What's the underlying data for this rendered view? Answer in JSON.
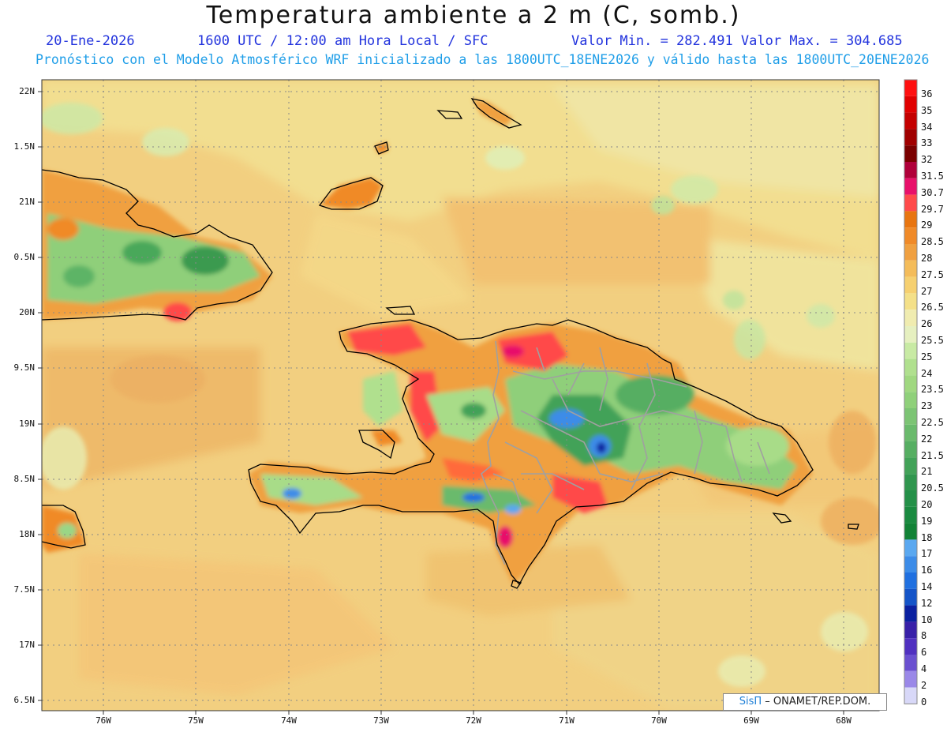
{
  "header": {
    "title": "Temperatura ambiente a 2 m (C, somb.)",
    "date": "20-Ene-2026",
    "time": "1600 UTC / 12:00 am Hora Local / SFC",
    "minmax": "Valor Min. = 282.491  Valor Max. = 304.685",
    "model_note": "Pronóstico con el Modelo Atmosférico WRF inicializado a las 1800UTC_18ENE2026 y válido hasta las  1800UTC_20ENE2026"
  },
  "axes": {
    "lat_labels": [
      "22N",
      "1.5N",
      "21N",
      "0.5N",
      "20N",
      "9.5N",
      "19N",
      "8.5N",
      "18N",
      "7.5N",
      "17N",
      "6.5N"
    ],
    "lon_labels": [
      "76W",
      "75W",
      "74W",
      "73W",
      "72W",
      "71W",
      "70W",
      "69W",
      "68W"
    ]
  },
  "colorbar": {
    "labels": [
      "36",
      "35",
      "34",
      "33",
      "32",
      "31.5",
      "30.7",
      "29.7",
      "29",
      "28.5",
      "28",
      "27.5",
      "27",
      "26.5",
      "26",
      "25.5",
      "25",
      "24",
      "23.5",
      "23",
      "22.5",
      "22",
      "21.5",
      "21",
      "20.5",
      "20",
      "19",
      "18",
      "17",
      "16",
      "14",
      "12",
      "10",
      "8",
      "6",
      "4",
      "2",
      "0"
    ],
    "colors": [
      "#ff1010",
      "#e00000",
      "#c40000",
      "#a00000",
      "#7a0000",
      "#b0003a",
      "#e8106a",
      "#ff4a4a",
      "#e87510",
      "#f08a28",
      "#f0a040",
      "#f4bc5a",
      "#f6d070",
      "#f4e088",
      "#f0ecb0",
      "#e6f0c0",
      "#c8eaa4",
      "#b0e08e",
      "#a0d880",
      "#8fd07a",
      "#7cc474",
      "#6aba6c",
      "#56ae62",
      "#42a258",
      "#30964e",
      "#249048",
      "#1a8a40",
      "#128236",
      "#5aa8f0",
      "#3c8ce8",
      "#2070e0",
      "#1454c8",
      "#0a20a0",
      "#3820a8",
      "#5030c0",
      "#6a50d0",
      "#9a88e8",
      "#d8d8f8"
    ]
  },
  "credit": {
    "brand": "SisΠ",
    "text": " – ONAMET/REP.DOM."
  },
  "colors": {
    "sea": "#f2cf80",
    "coastline": "#000000",
    "province_borders": "#a0a0a0",
    "grid": "#888888"
  }
}
